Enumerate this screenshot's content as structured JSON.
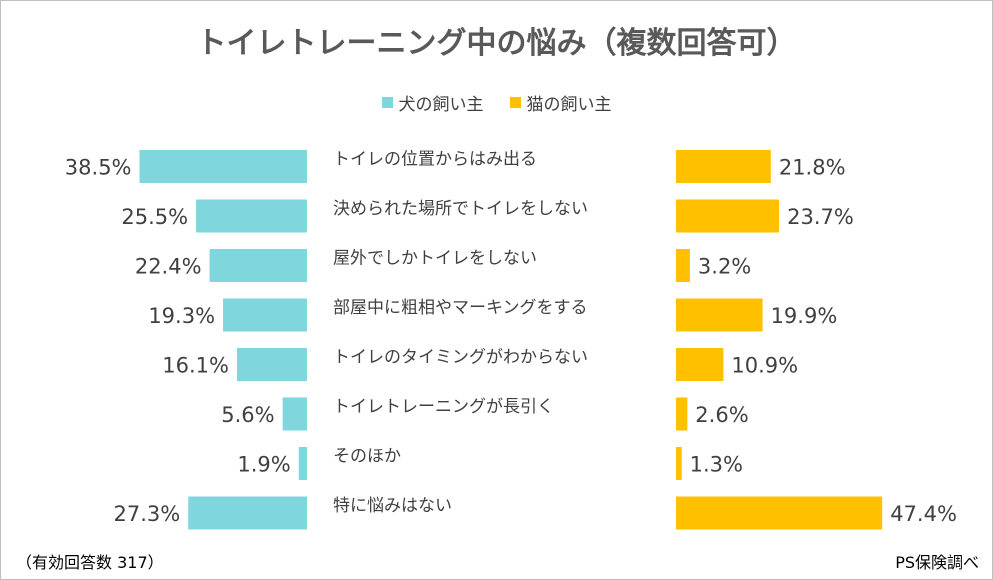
{
  "chart_data": {
    "type": "bar",
    "title": "トイレトレーニング中の悩み（複数回答可）",
    "categories": [
      "トイレの位置からはみ出る",
      "決められた場所でトイレをしない",
      "屋外でしかトイレをしない",
      "部屋中に粗相やマーキングをする",
      "トイレのタイミングがわからない",
      "トイレトレーニングが長引く",
      "そのほか",
      "特に悩みはない"
    ],
    "series": [
      {
        "name": "犬の飼い主",
        "color": "#7fd6dc",
        "values": [
          38.5,
          25.5,
          22.4,
          19.3,
          16.1,
          5.6,
          1.9,
          27.3
        ],
        "labels": [
          "38.5%",
          "25.5%",
          "22.4%",
          "19.3%",
          "16.1%",
          "5.6%",
          "1.9%",
          "27.3%"
        ]
      },
      {
        "name": "猫の飼い主",
        "color": "#ffc000",
        "values": [
          21.8,
          23.7,
          3.2,
          19.9,
          10.9,
          2.6,
          1.3,
          47.4
        ],
        "labels": [
          "21.8%",
          "23.7%",
          "3.2%",
          "19.9%",
          "10.9%",
          "2.6%",
          "1.3%",
          "47.4%"
        ]
      }
    ],
    "unit": "%"
  },
  "footnotes": {
    "sample": "（有効回答数 317）",
    "source": "PS保険調べ"
  }
}
